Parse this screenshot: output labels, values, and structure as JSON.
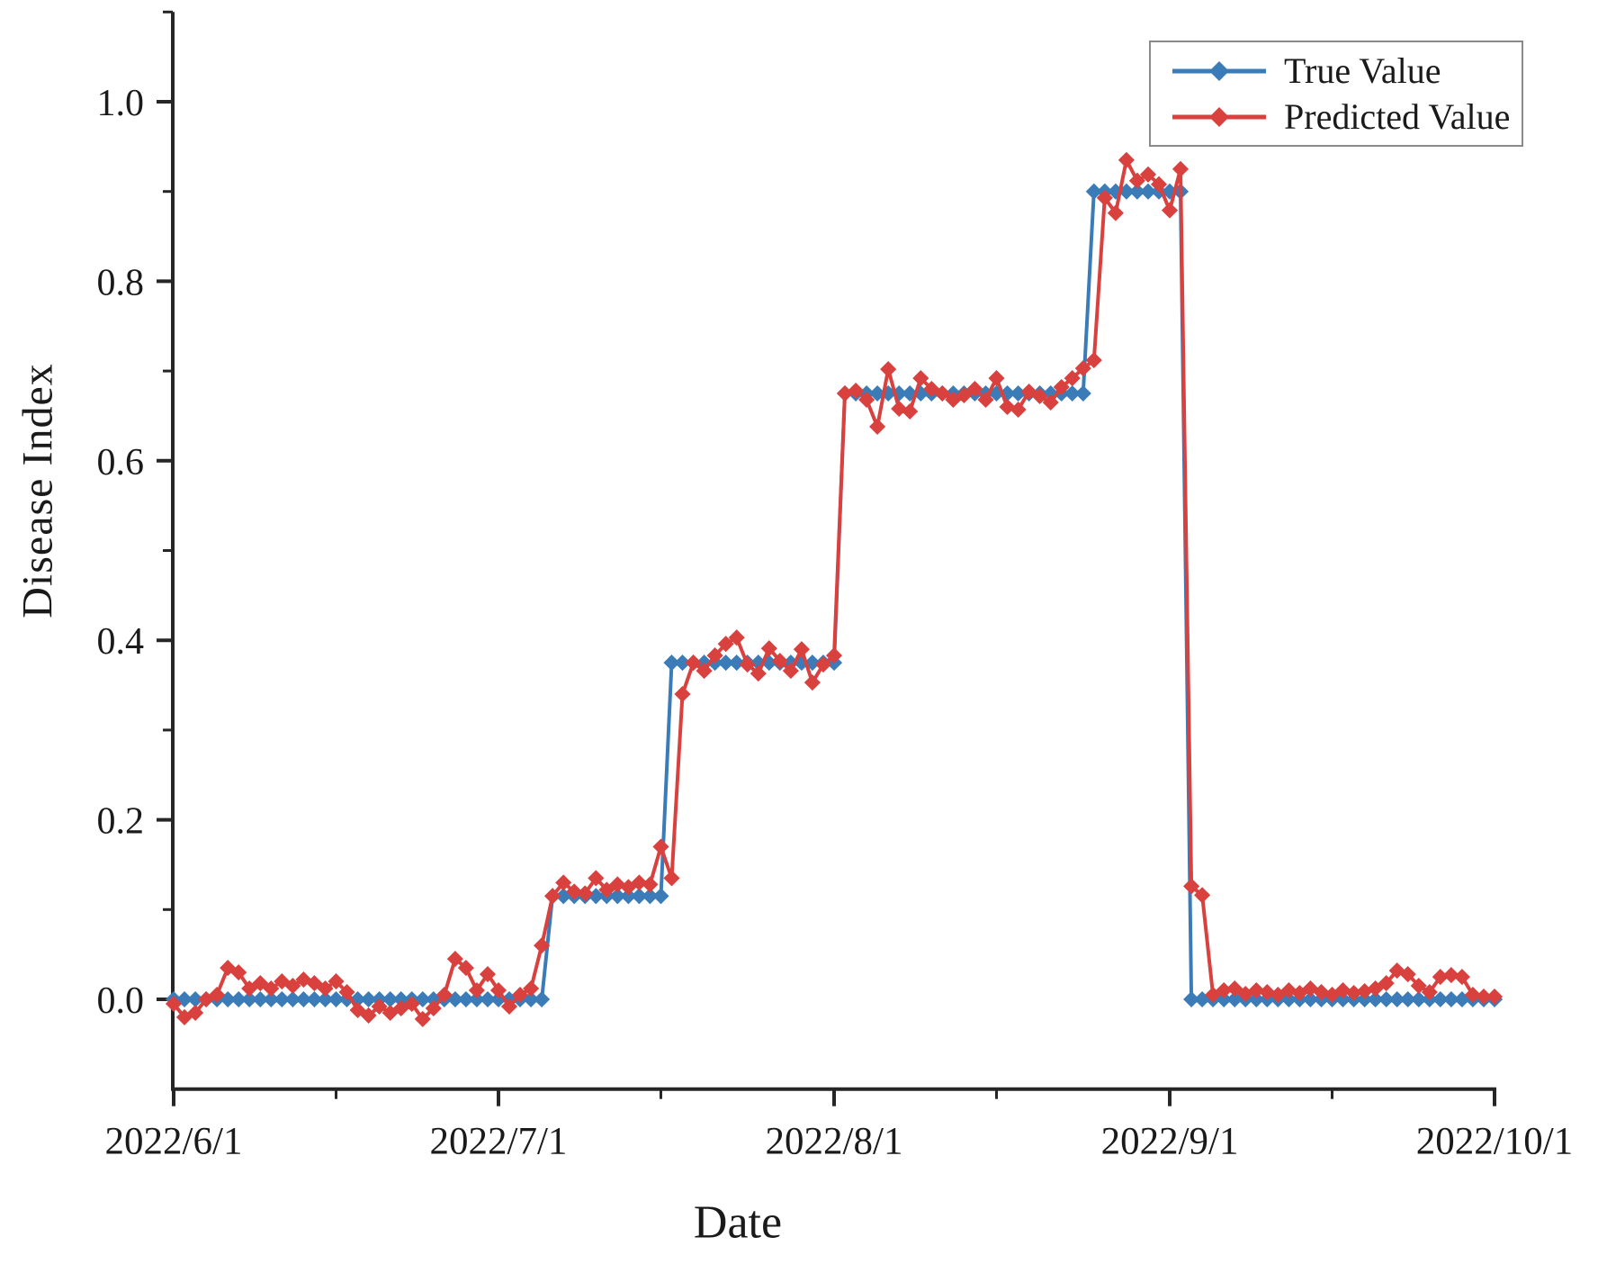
{
  "figure": {
    "background": "#ffffff",
    "axis_color": "#262626",
    "text_color": "#1a1a1a"
  },
  "chart_data": {
    "type": "line",
    "title": "",
    "xlabel": "Date",
    "ylabel": "Disease Index",
    "grid": false,
    "legend_position": "top-right",
    "x_start_date": "2022/6/1",
    "x_end_date": "2022/10/1",
    "x_step": "1 day",
    "x_axis": {
      "major_tick_days": [
        0,
        30,
        61,
        92,
        122
      ],
      "major_tick_labels": [
        "2022/6/1",
        "2022/7/1",
        "2022/8/1",
        "2022/9/1",
        "2022/10/1"
      ],
      "minor_tick_days": [
        15,
        45,
        76,
        107
      ]
    },
    "y_axis": {
      "range": [
        -0.1,
        1.1
      ],
      "major_ticks": [
        0.0,
        0.2,
        0.4,
        0.6,
        0.8,
        1.0
      ],
      "major_tick_labels": [
        "0.0",
        "0.2",
        "0.4",
        "0.6",
        "0.8",
        "1.0"
      ],
      "minor_ticks": [
        0.1,
        0.3,
        0.5,
        0.7,
        0.9,
        1.1
      ]
    },
    "series": [
      {
        "name": "True Value",
        "color": "#3b7cb8",
        "marker": "diamond",
        "values": [
          0,
          0,
          0,
          0,
          0,
          0,
          0,
          0,
          0,
          0,
          0,
          0,
          0,
          0,
          0,
          0,
          0,
          0,
          0,
          0,
          0,
          0,
          0,
          0,
          0,
          0,
          0,
          0,
          0,
          0,
          0,
          0,
          0,
          0,
          0,
          0.115,
          0.115,
          0.115,
          0.115,
          0.115,
          0.115,
          0.115,
          0.115,
          0.115,
          0.115,
          0.115,
          0.375,
          0.375,
          0.375,
          0.375,
          0.375,
          0.375,
          0.375,
          0.375,
          0.375,
          0.375,
          0.375,
          0.375,
          0.375,
          0.375,
          0.375,
          0.375,
          0.675,
          0.675,
          0.675,
          0.675,
          0.675,
          0.675,
          0.675,
          0.675,
          0.675,
          0.675,
          0.675,
          0.675,
          0.675,
          0.675,
          0.675,
          0.675,
          0.675,
          0.675,
          0.675,
          0.675,
          0.675,
          0.675,
          0.675,
          0.9,
          0.9,
          0.9,
          0.9,
          0.9,
          0.9,
          0.9,
          0.9,
          0.9,
          0,
          0,
          0,
          0,
          0,
          0,
          0,
          0,
          0,
          0,
          0,
          0,
          0,
          0,
          0,
          0,
          0,
          0,
          0,
          0,
          0,
          0,
          0,
          0,
          0,
          0,
          0,
          0,
          0
        ]
      },
      {
        "name": "Predicted Value",
        "color": "#d9413f",
        "marker": "diamond",
        "values": [
          -0.005,
          -0.02,
          -0.015,
          0,
          0.005,
          0.035,
          0.03,
          0.012,
          0.018,
          0.012,
          0.02,
          0.015,
          0.022,
          0.018,
          0.012,
          0.02,
          0.008,
          -0.012,
          -0.018,
          -0.008,
          -0.015,
          -0.01,
          -0.005,
          -0.022,
          -0.01,
          0.005,
          0.045,
          0.035,
          0.01,
          0.028,
          0.01,
          -0.008,
          0.005,
          0.012,
          0.06,
          0.115,
          0.13,
          0.12,
          0.118,
          0.135,
          0.122,
          0.128,
          0.125,
          0.13,
          0.128,
          0.17,
          0.135,
          0.34,
          0.375,
          0.366,
          0.383,
          0.396,
          0.403,
          0.373,
          0.363,
          0.391,
          0.377,
          0.366,
          0.39,
          0.353,
          0.373,
          0.383,
          0.675,
          0.678,
          0.668,
          0.638,
          0.702,
          0.658,
          0.655,
          0.692,
          0.68,
          0.675,
          0.668,
          0.673,
          0.68,
          0.668,
          0.692,
          0.66,
          0.657,
          0.677,
          0.672,
          0.665,
          0.682,
          0.692,
          0.703,
          0.712,
          0.893,
          0.876,
          0.935,
          0.912,
          0.919,
          0.908,
          0.879,
          0.925,
          0.126,
          0.116,
          0.005,
          0.01,
          0.012,
          0.006,
          0.01,
          0.008,
          0.005,
          0.01,
          0.007,
          0.012,
          0.008,
          0.005,
          0.01,
          0.007,
          0.009,
          0.012,
          0.018,
          0.032,
          0.028,
          0.015,
          0.008,
          0.025,
          0.027,
          0.025,
          0.005,
          0.003,
          0.003
        ]
      }
    ]
  }
}
